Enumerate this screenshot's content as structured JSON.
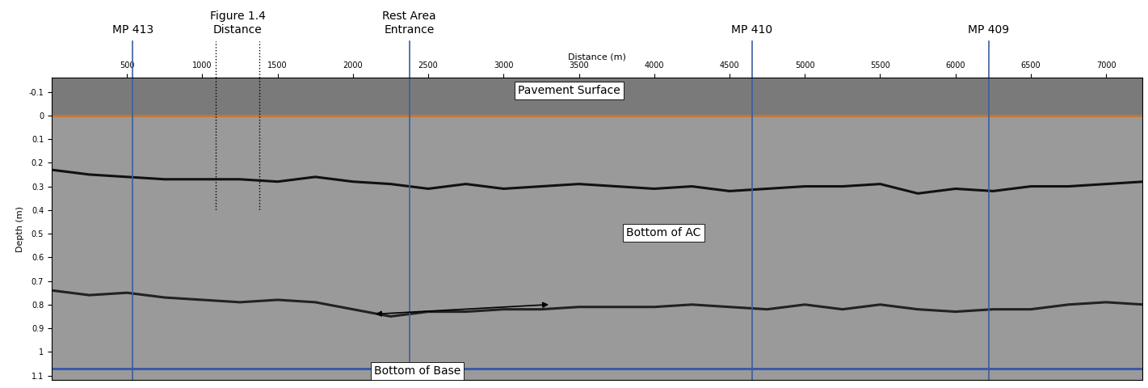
{
  "chart_data": {
    "type": "line",
    "x_label": "Distance (m)",
    "y_label": "Depth (m)",
    "xlim": [
      0,
      7240
    ],
    "xticks": [
      500,
      1000,
      1500,
      2000,
      2500,
      3000,
      3500,
      4000,
      4500,
      5000,
      5500,
      6000,
      6500,
      7000
    ],
    "ylim": [
      1.12,
      -0.16
    ],
    "yticks": [
      -0.1,
      0,
      0.1,
      0.2,
      0.3,
      0.4,
      0.5,
      0.6,
      0.7,
      0.8,
      0.9,
      1,
      1.1
    ],
    "grid": false,
    "series": [
      {
        "color": "#c87533",
        "line_style": "solid",
        "x": [
          0,
          7250
        ],
        "values": [
          0,
          0
        ]
      },
      {
        "color": "#111111",
        "line_style": "solid",
        "x": [
          0,
          250,
          500,
          750,
          1000,
          1250,
          1500,
          1750,
          2000,
          2250,
          2500,
          2750,
          3000,
          3250,
          3500,
          3750,
          4000,
          4250,
          4500,
          4750,
          5000,
          5250,
          5500,
          5750,
          6000,
          6250,
          6500,
          6750,
          7000,
          7250
        ],
        "values": [
          0.23,
          0.25,
          0.26,
          0.27,
          0.27,
          0.27,
          0.28,
          0.26,
          0.28,
          0.29,
          0.31,
          0.29,
          0.31,
          0.3,
          0.29,
          0.3,
          0.31,
          0.3,
          0.32,
          0.31,
          0.3,
          0.3,
          0.29,
          0.33,
          0.31,
          0.32,
          0.3,
          0.3,
          0.29,
          0.28
        ]
      },
      {
        "color": "#222222",
        "line_style": "solid",
        "x": [
          0,
          250,
          500,
          750,
          1000,
          1250,
          1500,
          1750,
          2000,
          2250,
          2500,
          2750,
          3000,
          3250,
          3500,
          3750,
          4000,
          4250,
          4500,
          4750,
          5000,
          5250,
          5500,
          5750,
          6000,
          6250,
          6500,
          6750,
          7000,
          7250
        ],
        "values": [
          0.74,
          0.76,
          0.75,
          0.77,
          0.78,
          0.79,
          0.78,
          0.79,
          0.82,
          0.85,
          0.83,
          0.83,
          0.82,
          0.82,
          0.81,
          0.81,
          0.81,
          0.8,
          0.81,
          0.82,
          0.8,
          0.82,
          0.8,
          0.82,
          0.83,
          0.82,
          0.82,
          0.8,
          0.79,
          0.8
        ]
      },
      {
        "color": "#3355aa",
        "line_style": "solid",
        "x": [
          0,
          7250
        ],
        "values": [
          1.07,
          1.07
        ]
      }
    ],
    "markers": [
      {
        "label": "MP 413",
        "x": [
          537
        ],
        "color": "#3a5fa0",
        "line_style": "solid"
      },
      {
        "label": "Figure 1.4\nDistance",
        "x": [
          1090,
          1380
        ],
        "color": "#000000",
        "line_style": "dotted",
        "depth_end": 0.4
      },
      {
        "label": "Rest Area\nEntrance",
        "x": [
          2374
        ],
        "color": "#3a5fa0",
        "line_style": "solid"
      },
      {
        "label": "MP 410",
        "x": [
          4650
        ],
        "color": "#3a5fa0",
        "line_style": "solid"
      },
      {
        "label": "MP 409",
        "x": [
          6220
        ],
        "color": "#3a5fa0",
        "line_style": "solid"
      }
    ],
    "annotations": [
      {
        "text": "Pavement Surface",
        "points": [
          [
            3250,
            0
          ]
        ]
      },
      {
        "text": "Bottom of AC",
        "points": [
          [
            4620,
            0.33
          ]
        ]
      },
      {
        "text": "Bottom of Base",
        "points": [
          [
            2150,
            0.84
          ],
          [
            3300,
            0.8
          ]
        ]
      }
    ]
  }
}
